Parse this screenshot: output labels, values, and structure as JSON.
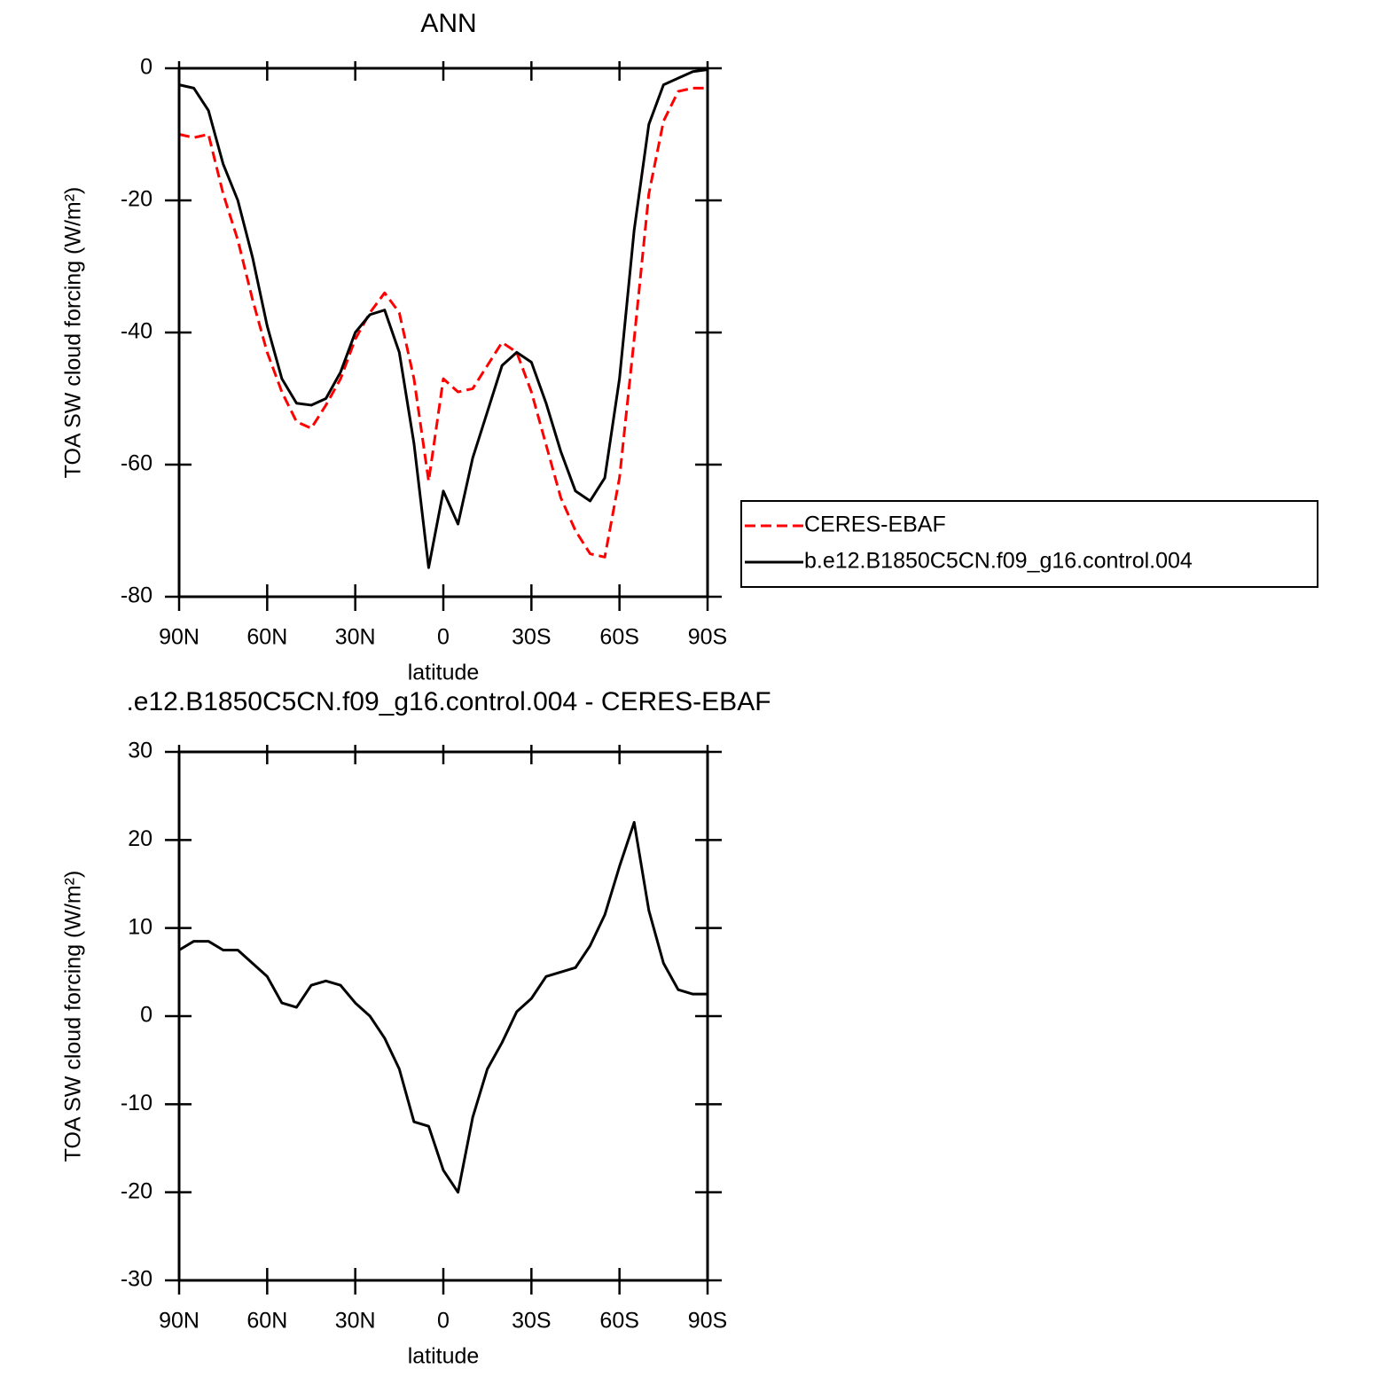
{
  "chart_data": [
    {
      "type": "line",
      "title": "ANN",
      "x_label": "latitude",
      "y_label": "TOA SW cloud forcing (W/m²)",
      "x": [
        90,
        85,
        80,
        75,
        70,
        65,
        60,
        55,
        50,
        45,
        40,
        35,
        30,
        25,
        20,
        15,
        10,
        5,
        0,
        -5,
        -10,
        -15,
        -20,
        -25,
        -30,
        -35,
        -40,
        -45,
        -50,
        -55,
        -60,
        -65,
        -70,
        -75,
        -80,
        -85,
        -90
      ],
      "xlim": [
        90,
        -90
      ],
      "xticks": [
        {
          "value": 90,
          "label": "90N"
        },
        {
          "value": 60,
          "label": "60N"
        },
        {
          "value": 30,
          "label": "30N"
        },
        0,
        {
          "value": -30,
          "label": "30S"
        },
        {
          "value": -60,
          "label": "60S"
        },
        {
          "value": -90,
          "label": "90S"
        }
      ],
      "ylim": [
        -80,
        0
      ],
      "yticks": [
        0,
        -20,
        -40,
        -60,
        -80
      ],
      "legend": "right",
      "series": [
        {
          "name": "CERES-EBAF",
          "color": "#ff0000",
          "line_style": "dashed",
          "values": [
            -10,
            -10.5,
            -10,
            -19,
            -26,
            -35,
            -43,
            -49,
            -53.5,
            -54.5,
            -51,
            -47,
            -41,
            -37,
            -34,
            -37,
            -47,
            -62.5,
            -47,
            -49,
            -48.5,
            -45,
            -41.5,
            -43,
            -49,
            -57,
            -65,
            -70,
            -73.5,
            -74,
            -62,
            -41,
            -19,
            -8,
            -3.5,
            -3,
            -3
          ]
        },
        {
          "name": "b.e12.B1850C5CN.f09_g16.control.004",
          "color": "#000000",
          "line_style": "solid",
          "values": [
            -2.5,
            -3,
            -6.4,
            -14.5,
            -20,
            -28.6,
            -39,
            -47,
            -50.7,
            -51,
            -50,
            -46,
            -40,
            -37.3,
            -36.6,
            -43,
            -56.8,
            -75.6,
            -64,
            -69,
            -59,
            -52,
            -45,
            -43,
            -44.5,
            -50.7,
            -58,
            -64,
            -65.5,
            -62,
            -47,
            -24.5,
            -8.5,
            -2.5,
            -1.5,
            -0.5,
            -0.2
          ]
        }
      ]
    },
    {
      "type": "line",
      "title": ".e12.B1850C5CN.f09_g16.control.004 - CERES-EBAF",
      "x_label": "latitude",
      "y_label": "TOA SW cloud forcing (W/m²)",
      "x": [
        90,
        85,
        80,
        75,
        70,
        65,
        60,
        55,
        50,
        45,
        40,
        35,
        30,
        25,
        20,
        15,
        10,
        5,
        0,
        -5,
        -10,
        -15,
        -20,
        -25,
        -30,
        -35,
        -40,
        -45,
        -50,
        -55,
        -60,
        -65,
        -70,
        -75,
        -80,
        -85,
        -90
      ],
      "xlim": [
        90,
        -90
      ],
      "xticks": [
        {
          "value": 90,
          "label": "90N"
        },
        {
          "value": 60,
          "label": "60N"
        },
        {
          "value": 30,
          "label": "30N"
        },
        0,
        {
          "value": -30,
          "label": "30S"
        },
        {
          "value": -60,
          "label": "60S"
        },
        {
          "value": -90,
          "label": "90S"
        }
      ],
      "ylim": [
        -30,
        30
      ],
      "yticks": [
        30,
        20,
        10,
        0,
        -10,
        -20,
        -30
      ],
      "color": "#000000",
      "values": [
        7.5,
        8.5,
        8.5,
        7.5,
        7.5,
        6,
        4.5,
        1.5,
        1,
        3.5,
        4,
        3.5,
        1.5,
        0,
        -2.5,
        -6,
        -12,
        -12.5,
        -17.5,
        -20,
        -11.5,
        -6,
        -3,
        0.5,
        2,
        4.5,
        5,
        5.5,
        8,
        11.5,
        17,
        22,
        12,
        6,
        3,
        2.5,
        2.5
      ]
    }
  ]
}
